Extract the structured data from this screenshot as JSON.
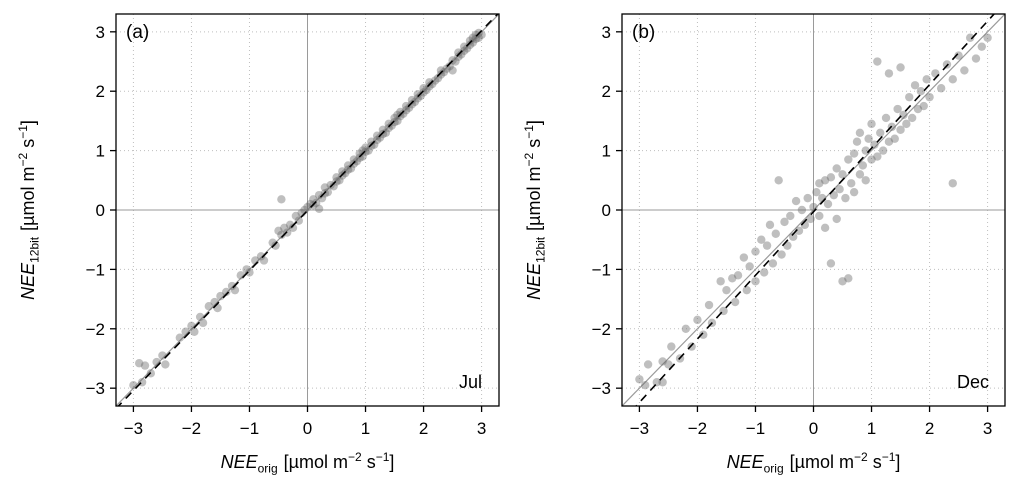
{
  "figure": {
    "description": "Two-panel scatter comparison of NEE measured with 12-bit logger vs original NEE",
    "background": "#ffffff"
  },
  "colors": {
    "point": "#666666",
    "point_opacity": 0.42,
    "grid": "#bfbfbf",
    "zero_line": "#9a9a9a",
    "identity_line": "#9a9a9a",
    "fit_line": "#000000",
    "box": "#000000"
  },
  "chart_data": [
    {
      "type": "scatter",
      "tag": "(a)",
      "month": "Jul",
      "xlabel": "NEE_orig [µmol m−2 s−1]",
      "ylabel": "NEE_12bit [µmol m−2 s−1]",
      "xlabel_var": "NEE",
      "xlabel_sub": "orig",
      "ylabel_var": "NEE",
      "ylabel_sub": "12bit",
      "units_pre": "[µmol m",
      "units_sup1": "−2",
      "units_mid": " s",
      "units_sup2": "−1",
      "units_post": "]",
      "xlim": [
        -3.3,
        3.3
      ],
      "ylim": [
        -3.3,
        3.3
      ],
      "ticks": {
        "values": [
          -3,
          -2,
          -1,
          0,
          1,
          2,
          3
        ],
        "labels": [
          "−3",
          "−2",
          "−1",
          "0",
          "1",
          "2",
          "3"
        ]
      },
      "grid": "dotted",
      "reference_lines": [
        {
          "name": "identity",
          "slope": 1.0,
          "intercept": 0.0,
          "style": "solid",
          "color": "#9a9a9a"
        },
        {
          "name": "fit",
          "slope": 1.01,
          "intercept": -0.01,
          "style": "dashed",
          "color": "#000000"
        }
      ],
      "points": [
        [
          -3,
          -2.95
        ],
        [
          -2.9,
          -2.58
        ],
        [
          -2.85,
          -2.9
        ],
        [
          -2.8,
          -2.62
        ],
        [
          -2.7,
          -2.75
        ],
        [
          -2.6,
          -2.56
        ],
        [
          -2.5,
          -2.45
        ],
        [
          -2.45,
          -2.6
        ],
        [
          -2.2,
          -2.15
        ],
        [
          -2.1,
          -2.05
        ],
        [
          -2,
          -1.95
        ],
        [
          -1.95,
          -2.05
        ],
        [
          -1.85,
          -1.8
        ],
        [
          -1.8,
          -1.9
        ],
        [
          -1.7,
          -1.62
        ],
        [
          -1.6,
          -1.55
        ],
        [
          -1.55,
          -1.65
        ],
        [
          -1.5,
          -1.45
        ],
        [
          -1.4,
          -1.38
        ],
        [
          -1.3,
          -1.28
        ],
        [
          -1.25,
          -1.35
        ],
        [
          -1.15,
          -1.1
        ],
        [
          -1.05,
          -1
        ],
        [
          -1,
          -1.05
        ],
        [
          -0.9,
          -0.85
        ],
        [
          -0.8,
          -0.78
        ],
        [
          -0.75,
          -0.85
        ],
        [
          -0.6,
          -0.55
        ],
        [
          -0.55,
          -0.6
        ],
        [
          -0.5,
          -0.35
        ],
        [
          -0.45,
          0.18
        ],
        [
          -0.45,
          -0.42
        ],
        [
          -0.4,
          -0.3
        ],
        [
          -0.35,
          -0.38
        ],
        [
          -0.3,
          -0.25
        ],
        [
          -0.25,
          -0.3
        ],
        [
          -0.2,
          -0.1
        ],
        [
          -0.15,
          -0.18
        ],
        [
          -0.1,
          -0.05
        ],
        [
          -0.05,
          0
        ],
        [
          0,
          0.05
        ],
        [
          0.05,
          0.1
        ],
        [
          0.1,
          0.08
        ],
        [
          0.1,
          0.18
        ],
        [
          0.15,
          0.12
        ],
        [
          0.2,
          0.02
        ],
        [
          0.2,
          0.25
        ],
        [
          0.25,
          0.2
        ],
        [
          0.3,
          0.28
        ],
        [
          0.3,
          0.38
        ],
        [
          0.35,
          0.3
        ],
        [
          0.4,
          0.42
        ],
        [
          0.45,
          0.4
        ],
        [
          0.5,
          0.48
        ],
        [
          0.5,
          0.55
        ],
        [
          0.55,
          0.5
        ],
        [
          0.6,
          0.58
        ],
        [
          0.6,
          0.65
        ],
        [
          0.65,
          0.62
        ],
        [
          0.7,
          0.68
        ],
        [
          0.7,
          0.75
        ],
        [
          0.75,
          0.7
        ],
        [
          0.8,
          0.78
        ],
        [
          0.8,
          0.85
        ],
        [
          0.85,
          0.82
        ],
        [
          0.9,
          0.88
        ],
        [
          0.9,
          0.95
        ],
        [
          0.95,
          0.9
        ],
        [
          0.95,
          1
        ],
        [
          1,
          0.98
        ],
        [
          1,
          1.05
        ],
        [
          1.05,
          1
        ],
        [
          1.1,
          1.08
        ],
        [
          1.1,
          1.15
        ],
        [
          1.15,
          1.1
        ],
        [
          1.2,
          1.18
        ],
        [
          1.2,
          1.25
        ],
        [
          1.25,
          1.22
        ],
        [
          1.3,
          1.28
        ],
        [
          1.3,
          1.35
        ],
        [
          1.35,
          1.3
        ],
        [
          1.4,
          1.38
        ],
        [
          1.4,
          1.45
        ],
        [
          1.45,
          1.42
        ],
        [
          1.5,
          1.48
        ],
        [
          1.5,
          1.55
        ],
        [
          1.55,
          1.5
        ],
        [
          1.55,
          1.6
        ],
        [
          1.6,
          1.58
        ],
        [
          1.6,
          1.65
        ],
        [
          1.65,
          1.62
        ],
        [
          1.7,
          1.68
        ],
        [
          1.7,
          1.75
        ],
        [
          1.75,
          1.72
        ],
        [
          1.8,
          1.78
        ],
        [
          1.8,
          1.85
        ],
        [
          1.85,
          1.82
        ],
        [
          1.9,
          1.88
        ],
        [
          1.9,
          1.95
        ],
        [
          1.95,
          1.92
        ],
        [
          2,
          1.98
        ],
        [
          2,
          2.05
        ],
        [
          2.05,
          2.02
        ],
        [
          2.1,
          2.08
        ],
        [
          2.1,
          2.15
        ],
        [
          2.15,
          2.12
        ],
        [
          2.2,
          2.18
        ],
        [
          2.25,
          2.22
        ],
        [
          2.3,
          2.28
        ],
        [
          2.3,
          2.35
        ],
        [
          2.35,
          2.32
        ],
        [
          2.4,
          2.38
        ],
        [
          2.45,
          2.42
        ],
        [
          2.5,
          2.35
        ],
        [
          2.5,
          2.52
        ],
        [
          2.55,
          2.5
        ],
        [
          2.6,
          2.58
        ],
        [
          2.6,
          2.65
        ],
        [
          2.65,
          2.62
        ],
        [
          2.7,
          2.68
        ],
        [
          2.7,
          2.75
        ],
        [
          2.75,
          2.72
        ],
        [
          2.8,
          2.78
        ],
        [
          2.8,
          2.85
        ],
        [
          2.85,
          2.82
        ],
        [
          2.85,
          2.9
        ],
        [
          2.9,
          2.88
        ],
        [
          2.9,
          2.95
        ],
        [
          2.95,
          2.9
        ],
        [
          2.95,
          2.98
        ],
        [
          3,
          2.95
        ]
      ]
    },
    {
      "type": "scatter",
      "tag": "(b)",
      "month": "Dec",
      "xlabel": "NEE_orig [µmol m−2 s−1]",
      "ylabel": "NEE_12bit [µmol m−2 s−1]",
      "xlabel_var": "NEE",
      "xlabel_sub": "orig",
      "ylabel_var": "NEE",
      "ylabel_sub": "12bit",
      "units_pre": "[µmol m",
      "units_sup1": "−2",
      "units_mid": " s",
      "units_sup2": "−1",
      "units_post": "]",
      "xlim": [
        -3.3,
        3.3
      ],
      "ylim": [
        -3.3,
        3.3
      ],
      "ticks": {
        "values": [
          -3,
          -2,
          -1,
          0,
          1,
          2,
          3
        ],
        "labels": [
          "−3",
          "−2",
          "−1",
          "0",
          "1",
          "2",
          "3"
        ]
      },
      "grid": "dotted",
      "reference_lines": [
        {
          "name": "identity",
          "slope": 1.0,
          "intercept": 0.0,
          "style": "solid",
          "color": "#9a9a9a"
        },
        {
          "name": "fit",
          "slope": 1.07,
          "intercept": -0.03,
          "style": "dashed",
          "color": "#000000"
        }
      ],
      "points": [
        [
          -3,
          -2.85
        ],
        [
          -2.9,
          -2.95
        ],
        [
          -2.85,
          -2.6
        ],
        [
          -2.7,
          -2.9
        ],
        [
          -2.6,
          -2.55
        ],
        [
          -2.6,
          -2.9
        ],
        [
          -2.5,
          -2.6
        ],
        [
          -2.45,
          -2.3
        ],
        [
          -2.3,
          -2.5
        ],
        [
          -2.2,
          -2
        ],
        [
          -2.1,
          -2.3
        ],
        [
          -2,
          -1.85
        ],
        [
          -1.9,
          -2.1
        ],
        [
          -1.8,
          -1.6
        ],
        [
          -1.75,
          -1.9
        ],
        [
          -1.6,
          -1.2
        ],
        [
          -1.55,
          -1.7
        ],
        [
          -1.5,
          -1.35
        ],
        [
          -1.4,
          -1.15
        ],
        [
          -1.35,
          -1.55
        ],
        [
          -1.3,
          -1.1
        ],
        [
          -1.2,
          -0.8
        ],
        [
          -1.15,
          -1.35
        ],
        [
          -1.1,
          -0.95
        ],
        [
          -1,
          -0.7
        ],
        [
          -1,
          -1.2
        ],
        [
          -0.9,
          -0.5
        ],
        [
          -0.85,
          -1.05
        ],
        [
          -0.8,
          -0.6
        ],
        [
          -0.75,
          -0.25
        ],
        [
          -0.7,
          -0.9
        ],
        [
          -0.65,
          -0.4
        ],
        [
          -0.6,
          0.5
        ],
        [
          -0.55,
          -0.75
        ],
        [
          -0.5,
          -0.2
        ],
        [
          -0.45,
          -0.6
        ],
        [
          -0.4,
          -0.1
        ],
        [
          -0.35,
          -0.45
        ],
        [
          -0.3,
          0.15
        ],
        [
          -0.25,
          -0.35
        ],
        [
          -0.2,
          0
        ],
        [
          -0.15,
          -0.25
        ],
        [
          -0.1,
          0.2
        ],
        [
          -0.05,
          -0.15
        ],
        [
          0,
          0.05
        ],
        [
          0.05,
          0.3
        ],
        [
          0.1,
          -0.1
        ],
        [
          0.1,
          0.45
        ],
        [
          0.15,
          0.2
        ],
        [
          0.2,
          -0.3
        ],
        [
          0.2,
          0.5
        ],
        [
          0.25,
          0.1
        ],
        [
          0.3,
          -0.9
        ],
        [
          0.3,
          0.55
        ],
        [
          0.35,
          0.25
        ],
        [
          0.4,
          -0.15
        ],
        [
          0.4,
          0.7
        ],
        [
          0.45,
          0.35
        ],
        [
          0.5,
          -1.2
        ],
        [
          0.5,
          0.6
        ],
        [
          0.55,
          0.2
        ],
        [
          0.6,
          0.85
        ],
        [
          0.6,
          -1.15
        ],
        [
          0.65,
          0.45
        ],
        [
          0.7,
          0.95
        ],
        [
          0.7,
          0.3
        ],
        [
          0.75,
          1.15
        ],
        [
          0.8,
          0.6
        ],
        [
          0.8,
          1.3
        ],
        [
          0.85,
          0.75
        ],
        [
          0.9,
          1
        ],
        [
          0.9,
          0.5
        ],
        [
          0.95,
          1.2
        ],
        [
          1,
          0.85
        ],
        [
          1,
          1.45
        ],
        [
          1.05,
          1.1
        ],
        [
          1.1,
          0.9
        ],
        [
          1.1,
          2.5
        ],
        [
          1.15,
          1.3
        ],
        [
          1.2,
          1
        ],
        [
          1.25,
          1.55
        ],
        [
          1.3,
          2.3
        ],
        [
          1.3,
          1.15
        ],
        [
          1.35,
          1.4
        ],
        [
          1.4,
          1.2
        ],
        [
          1.45,
          1.7
        ],
        [
          1.5,
          1.35
        ],
        [
          1.5,
          2.4
        ],
        [
          1.55,
          1.6
        ],
        [
          1.6,
          1.45
        ],
        [
          1.65,
          1.9
        ],
        [
          1.7,
          1.55
        ],
        [
          1.75,
          2.1
        ],
        [
          1.8,
          1.7
        ],
        [
          1.85,
          2
        ],
        [
          1.9,
          1.75
        ],
        [
          1.95,
          2.2
        ],
        [
          2,
          1.9
        ],
        [
          2.1,
          2.3
        ],
        [
          2.2,
          2.05
        ],
        [
          2.3,
          2.45
        ],
        [
          2.4,
          0.45
        ],
        [
          2.4,
          2.2
        ],
        [
          2.5,
          2.6
        ],
        [
          2.6,
          2.35
        ],
        [
          2.7,
          2.9
        ],
        [
          2.8,
          2.55
        ],
        [
          2.9,
          2.75
        ],
        [
          3,
          2.9
        ]
      ]
    }
  ]
}
